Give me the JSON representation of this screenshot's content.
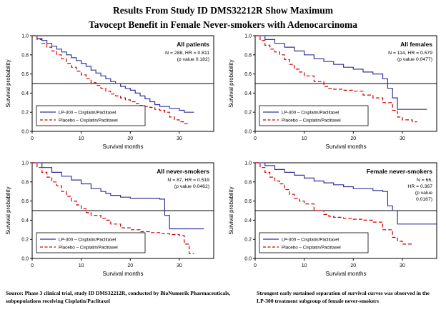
{
  "page": {
    "title_line1": "Results From Study ID DMS32212R Show Maximum",
    "title_line2": "Tavocept Benefit in Female Never-smokers with Adenocarcinoma",
    "footer_left": "Source: Phase 3 clinical trial, study ID DMS32212R, conducted by BioNumerik Pharmaceuticals, subpopulations receiving Cisplatin/Paclitaxel",
    "footer_right": "Strongest early sustained separation of survival curves was observed in the LP-300 treatment subgroup of female never-smokers"
  },
  "colors": {
    "lp300": "#333399",
    "placebo": "#cc0000",
    "axis": "#000000"
  },
  "chart_data": [
    {
      "type": "line",
      "subtype": "kaplan-meier-step",
      "title": "All patients",
      "stats_lines": [
        "N = 288, HR = 0.811",
        "(p value 0.182)"
      ],
      "xlabel": "Survival months",
      "ylabel": "Survival probability",
      "xlim": [
        0,
        37
      ],
      "ylim": [
        0,
        1.0
      ],
      "xticks": [
        0,
        10,
        20,
        30
      ],
      "yticks": [
        0,
        0.2,
        0.4,
        0.6,
        0.8,
        1.0
      ],
      "ref_line_y": 0.5,
      "legend_position": "bottom-left",
      "series": [
        {
          "name": "LP-300 – Cisplatin/Paclitaxel",
          "color_key": "lp300",
          "dash": "solid",
          "points": [
            [
              0,
              1.0
            ],
            [
              1,
              0.97
            ],
            [
              2,
              0.95
            ],
            [
              3,
              0.92
            ],
            [
              4,
              0.89
            ],
            [
              5,
              0.86
            ],
            [
              6,
              0.83
            ],
            [
              7,
              0.8
            ],
            [
              8,
              0.77
            ],
            [
              9,
              0.74
            ],
            [
              10,
              0.71
            ],
            [
              11,
              0.68
            ],
            [
              12,
              0.64
            ],
            [
              13,
              0.61
            ],
            [
              14,
              0.58
            ],
            [
              15,
              0.55
            ],
            [
              16,
              0.52
            ],
            [
              17,
              0.5
            ],
            [
              18,
              0.47
            ],
            [
              19,
              0.45
            ],
            [
              20,
              0.43
            ],
            [
              21,
              0.4
            ],
            [
              22,
              0.37
            ],
            [
              23,
              0.34
            ],
            [
              24,
              0.31
            ],
            [
              25,
              0.28
            ],
            [
              26,
              0.26
            ],
            [
              28,
              0.24
            ],
            [
              30,
              0.22
            ],
            [
              31,
              0.2
            ],
            [
              33,
              0.2
            ]
          ]
        },
        {
          "name": "Placebo – Cisplatin/Paclitaxel",
          "color_key": "placebo",
          "dash": "dashed",
          "points": [
            [
              0,
              1.0
            ],
            [
              1,
              0.96
            ],
            [
              2,
              0.92
            ],
            [
              3,
              0.88
            ],
            [
              4,
              0.84
            ],
            [
              5,
              0.8
            ],
            [
              6,
              0.76
            ],
            [
              7,
              0.71
            ],
            [
              8,
              0.67
            ],
            [
              9,
              0.63
            ],
            [
              10,
              0.59
            ],
            [
              11,
              0.55
            ],
            [
              12,
              0.51
            ],
            [
              13,
              0.48
            ],
            [
              14,
              0.45
            ],
            [
              15,
              0.42
            ],
            [
              16,
              0.39
            ],
            [
              17,
              0.37
            ],
            [
              18,
              0.35
            ],
            [
              19,
              0.33
            ],
            [
              20,
              0.31
            ],
            [
              21,
              0.29
            ],
            [
              22,
              0.27
            ],
            [
              23,
              0.26
            ],
            [
              24,
              0.25
            ],
            [
              25,
              0.23
            ],
            [
              26,
              0.22
            ],
            [
              27,
              0.2
            ],
            [
              28,
              0.15
            ],
            [
              29,
              0.12
            ],
            [
              30,
              0.1
            ],
            [
              31,
              0.08
            ],
            [
              32,
              0.08
            ]
          ]
        }
      ]
    },
    {
      "type": "line",
      "subtype": "kaplan-meier-step",
      "title": "All females",
      "stats_lines": [
        "N = 114, HR = 0.579",
        "(p value 0.0477)"
      ],
      "xlabel": "Survival months",
      "ylabel": "Survival probability",
      "xlim": [
        0,
        37
      ],
      "ylim": [
        0,
        1.0
      ],
      "xticks": [
        0,
        10,
        20,
        30
      ],
      "yticks": [
        0,
        0.2,
        0.4,
        0.6,
        0.8,
        1.0
      ],
      "ref_line_y": 0.5,
      "legend_position": "bottom-left",
      "series": [
        {
          "name": "LP-300 – Cisplatin/Paclitaxel",
          "color_key": "lp300",
          "dash": "solid",
          "points": [
            [
              0,
              1.0
            ],
            [
              2,
              0.96
            ],
            [
              4,
              0.92
            ],
            [
              6,
              0.88
            ],
            [
              8,
              0.84
            ],
            [
              10,
              0.8
            ],
            [
              12,
              0.76
            ],
            [
              14,
              0.73
            ],
            [
              16,
              0.7
            ],
            [
              18,
              0.67
            ],
            [
              20,
              0.65
            ],
            [
              22,
              0.62
            ],
            [
              24,
              0.6
            ],
            [
              26,
              0.55
            ],
            [
              27,
              0.45
            ],
            [
              28,
              0.35
            ],
            [
              29,
              0.23
            ],
            [
              35,
              0.23
            ]
          ]
        },
        {
          "name": "Placebo – Cisplatin/Paclitaxel",
          "color_key": "placebo",
          "dash": "dashed",
          "points": [
            [
              0,
              1.0
            ],
            [
              1,
              0.95
            ],
            [
              2,
              0.9
            ],
            [
              3,
              0.86
            ],
            [
              4,
              0.83
            ],
            [
              5,
              0.8
            ],
            [
              6,
              0.75
            ],
            [
              7,
              0.7
            ],
            [
              8,
              0.65
            ],
            [
              9,
              0.62
            ],
            [
              10,
              0.58
            ],
            [
              12,
              0.52
            ],
            [
              14,
              0.47
            ],
            [
              15,
              0.45
            ],
            [
              16,
              0.44
            ],
            [
              18,
              0.43
            ],
            [
              20,
              0.42
            ],
            [
              22,
              0.38
            ],
            [
              24,
              0.35
            ],
            [
              26,
              0.3
            ],
            [
              28,
              0.22
            ],
            [
              29,
              0.15
            ],
            [
              30,
              0.12
            ],
            [
              32,
              0.1
            ],
            [
              33,
              0.1
            ]
          ]
        }
      ]
    },
    {
      "type": "line",
      "subtype": "kaplan-meier-step",
      "title": "All never-smokers",
      "stats_lines": [
        "N = 87, HR = 0.519",
        "(p value 0.0462)"
      ],
      "xlabel": "Survival months",
      "ylabel": "Survival probability",
      "xlim": [
        0,
        37
      ],
      "ylim": [
        0,
        1.0
      ],
      "xticks": [
        0,
        10,
        20,
        30
      ],
      "yticks": [
        0,
        0.2,
        0.4,
        0.6,
        0.8,
        1.0
      ],
      "ref_line_y": 0.5,
      "legend_position": "bottom-left",
      "series": [
        {
          "name": "LP-300 – Cisplatin/Paclitaxel",
          "color_key": "lp300",
          "dash": "solid",
          "points": [
            [
              0,
              1.0
            ],
            [
              2,
              0.95
            ],
            [
              4,
              0.9
            ],
            [
              6,
              0.86
            ],
            [
              8,
              0.82
            ],
            [
              10,
              0.78
            ],
            [
              12,
              0.73
            ],
            [
              14,
              0.7
            ],
            [
              15,
              0.68
            ],
            [
              16,
              0.66
            ],
            [
              18,
              0.64
            ],
            [
              20,
              0.63
            ],
            [
              26,
              0.62
            ],
            [
              27,
              0.45
            ],
            [
              28,
              0.31
            ],
            [
              35,
              0.31
            ]
          ]
        },
        {
          "name": "Placebo – Cisplatin/Paclitaxel",
          "color_key": "placebo",
          "dash": "dashed",
          "points": [
            [
              0,
              1.0
            ],
            [
              1,
              0.95
            ],
            [
              2,
              0.9
            ],
            [
              3,
              0.85
            ],
            [
              4,
              0.8
            ],
            [
              5,
              0.76
            ],
            [
              6,
              0.7
            ],
            [
              7,
              0.65
            ],
            [
              8,
              0.6
            ],
            [
              9,
              0.56
            ],
            [
              10,
              0.52
            ],
            [
              11,
              0.48
            ],
            [
              12,
              0.45
            ],
            [
              14,
              0.42
            ],
            [
              15,
              0.4
            ],
            [
              16,
              0.36
            ],
            [
              18,
              0.32
            ],
            [
              20,
              0.3
            ],
            [
              22,
              0.28
            ],
            [
              24,
              0.27
            ],
            [
              26,
              0.26
            ],
            [
              28,
              0.25
            ],
            [
              30,
              0.24
            ],
            [
              31,
              0.15
            ],
            [
              32,
              0.05
            ],
            [
              33,
              0.05
            ]
          ]
        }
      ]
    },
    {
      "type": "line",
      "subtype": "kaplan-meier-step",
      "title": "Female never-smokers",
      "stats_lines": [
        "N = 66,",
        "HR = 0.367",
        "(p value",
        "0.0167)"
      ],
      "xlabel": "Survival months",
      "ylabel": "Survival probability",
      "xlim": [
        0,
        37
      ],
      "ylim": [
        0,
        1.0
      ],
      "xticks": [
        0,
        10,
        20,
        30
      ],
      "yticks": [
        0,
        0.2,
        0.4,
        0.6,
        0.8,
        1.0
      ],
      "ref_line_y": 0.5,
      "legend_position": "bottom-left",
      "series": [
        {
          "name": "LP-300 – Cisplatin/Paclitaxel",
          "color_key": "lp300",
          "dash": "solid",
          "points": [
            [
              0,
              1.0
            ],
            [
              2,
              0.97
            ],
            [
              4,
              0.93
            ],
            [
              6,
              0.9
            ],
            [
              8,
              0.87
            ],
            [
              10,
              0.84
            ],
            [
              12,
              0.81
            ],
            [
              14,
              0.79
            ],
            [
              16,
              0.77
            ],
            [
              18,
              0.75
            ],
            [
              20,
              0.73
            ],
            [
              24,
              0.71
            ],
            [
              26,
              0.7
            ],
            [
              27,
              0.55
            ],
            [
              28,
              0.5
            ],
            [
              29,
              0.36
            ],
            [
              37,
              0.36
            ]
          ]
        },
        {
          "name": "Placebo – Cisplatin/Paclitaxel",
          "color_key": "placebo",
          "dash": "dashed",
          "points": [
            [
              0,
              1.0
            ],
            [
              1,
              0.95
            ],
            [
              2,
              0.9
            ],
            [
              3,
              0.85
            ],
            [
              4,
              0.81
            ],
            [
              5,
              0.78
            ],
            [
              6,
              0.72
            ],
            [
              7,
              0.67
            ],
            [
              8,
              0.63
            ],
            [
              9,
              0.6
            ],
            [
              10,
              0.57
            ],
            [
              12,
              0.5
            ],
            [
              14,
              0.46
            ],
            [
              15,
              0.44
            ],
            [
              16,
              0.43
            ],
            [
              18,
              0.42
            ],
            [
              20,
              0.41
            ],
            [
              22,
              0.4
            ],
            [
              24,
              0.38
            ],
            [
              26,
              0.3
            ],
            [
              28,
              0.22
            ],
            [
              29,
              0.18
            ],
            [
              30,
              0.15
            ],
            [
              32,
              0.15
            ]
          ]
        }
      ]
    }
  ]
}
